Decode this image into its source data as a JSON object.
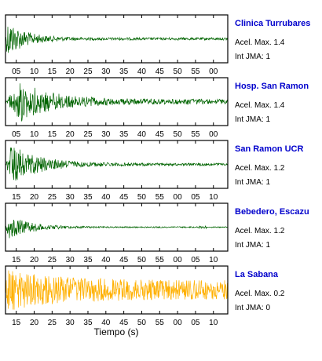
{
  "chart_data": {
    "type": "line",
    "xlabel": "Tiempo (s)",
    "panels": [
      {
        "station": "Clinica Turrubares",
        "accel_text": "Acel. Max. 1.4",
        "intensity_text": "Int JMA: 1",
        "color": "#006400",
        "max_accel": 1.4,
        "jma_intensity": 1,
        "ticks": [
          "05",
          "10",
          "15",
          "20",
          "25",
          "30",
          "35",
          "40",
          "45",
          "50",
          "55",
          "00"
        ],
        "signal": {
          "onset_s": 0.5,
          "peak_amplitude_fraction": 0.85,
          "decay_s": 5,
          "tail_fraction": 0.07
        }
      },
      {
        "station": "Hosp. San Ramon",
        "accel_text": "Acel. Max. 1.4",
        "intensity_text": "Int JMA: 1",
        "color": "#006400",
        "max_accel": 1.4,
        "jma_intensity": 1,
        "ticks": [
          "05",
          "10",
          "15",
          "20",
          "25",
          "30",
          "35",
          "40",
          "45",
          "50",
          "55",
          "00"
        ],
        "signal": {
          "onset_s": 4.5,
          "peak_amplitude_fraction": 0.9,
          "decay_s": 9,
          "tail_fraction": 0.12
        }
      },
      {
        "station": "San Ramon UCR",
        "accel_text": "Acel. Max. 1.2",
        "intensity_text": "Int JMA: 1",
        "color": "#006400",
        "max_accel": 1.2,
        "jma_intensity": 1,
        "ticks": [
          "15",
          "20",
          "25",
          "30",
          "35",
          "40",
          "45",
          "50",
          "55",
          "00",
          "05",
          "10"
        ],
        "signal": {
          "onset_s": 1.5,
          "peak_amplitude_fraction": 0.9,
          "decay_s": 8,
          "tail_fraction": 0.06
        }
      },
      {
        "station": "Bebedero, Escazu",
        "accel_text": "Acel. Max. 1.2",
        "intensity_text": "Int JMA: 1",
        "color": "#006400",
        "max_accel": 1.2,
        "jma_intensity": 1,
        "ticks": [
          "15",
          "20",
          "25",
          "30",
          "35",
          "40",
          "45",
          "50",
          "55",
          "00",
          "05",
          "10"
        ],
        "signal": {
          "onset_s": 1.0,
          "peak_amplitude_fraction": 0.55,
          "decay_s": 6,
          "tail_fraction": 0.05
        }
      },
      {
        "station": "La Sabana",
        "accel_text": "Acel. Max. 0.2",
        "intensity_text": "Int JMA: 0",
        "color": "#FFB000",
        "max_accel": 0.2,
        "jma_intensity": 0,
        "ticks": [
          "15",
          "20",
          "25",
          "30",
          "35",
          "40",
          "45",
          "50",
          "55",
          "00",
          "05",
          "10"
        ],
        "signal": {
          "onset_s": 0.5,
          "peak_amplitude_fraction": 0.95,
          "decay_s": 14,
          "tail_fraction": 0.45
        }
      }
    ],
    "x_span_s": 62,
    "tick_start_offset_s": 3,
    "tick_step_s": 5,
    "grid": false,
    "station_label_color": "#0000CC"
  }
}
